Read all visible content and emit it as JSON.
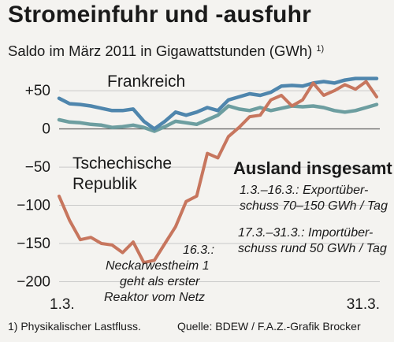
{
  "title": "Stromeinfuhr und -ausfuhr",
  "subtitle": "Saldo im März 2011 in Gigawattstunden (GWh)",
  "subtitle_footnote_mark": "1)",
  "footnote": "1) Physikalischer Lastfluss.",
  "source": "Quelle: BDEW / F.A.Z.-Grafik Brocker",
  "chart_data": {
    "type": "line",
    "x": [
      1,
      2,
      3,
      4,
      5,
      6,
      7,
      8,
      9,
      10,
      11,
      12,
      13,
      14,
      15,
      16,
      17,
      18,
      19,
      20,
      21,
      22,
      23,
      24,
      25,
      26,
      27,
      28,
      29,
      30,
      31
    ],
    "xtick_labels": [
      "1.3.",
      "31.3."
    ],
    "xtick_positions": [
      1,
      31
    ],
    "yticks": [
      50,
      0,
      -50,
      -100,
      -150,
      -200
    ],
    "ytick_labels": [
      "+50",
      "0",
      "−50",
      "−100",
      "−150",
      "−200"
    ],
    "ylim": [
      -215,
      78
    ],
    "grid": true,
    "series": [
      {
        "name": "Frankreich",
        "color": "#4f86ad",
        "values": [
          40,
          33,
          32,
          30,
          27,
          24,
          24,
          26,
          10,
          0,
          10,
          22,
          18,
          22,
          28,
          24,
          38,
          42,
          46,
          44,
          48,
          56,
          57,
          56,
          60,
          62,
          60,
          64,
          66,
          66,
          66
        ]
      },
      {
        "name": "Tschechische Republik",
        "color": "#6d9ea0",
        "values": [
          12,
          9,
          8,
          6,
          5,
          2,
          3,
          5,
          2,
          -3,
          3,
          10,
          8,
          6,
          12,
          18,
          30,
          26,
          24,
          28,
          24,
          27,
          30,
          29,
          30,
          28,
          24,
          22,
          24,
          28,
          32
        ]
      },
      {
        "name": "Ausland insgesamt",
        "color": "#c7765e",
        "values": [
          -88,
          -120,
          -145,
          -142,
          -150,
          -152,
          -162,
          -148,
          -175,
          -172,
          -150,
          -128,
          -95,
          -88,
          -32,
          -38,
          -10,
          2,
          16,
          18,
          38,
          44,
          30,
          38,
          60,
          44,
          50,
          58,
          52,
          62,
          42
        ]
      }
    ],
    "annotations": [
      {
        "lines": [
          "1.3.–16.3.: Exportüber-",
          "schuss 70–150 GWh / Tag"
        ]
      },
      {
        "lines": [
          "17.3.–31.3.: Importüber-",
          "schuss rund 50 GWh / Tag"
        ]
      },
      {
        "lines": [
          "16.3.:",
          "Neckarwestheim 1",
          "geht als erster",
          "Reaktor vom Netz"
        ]
      }
    ]
  }
}
